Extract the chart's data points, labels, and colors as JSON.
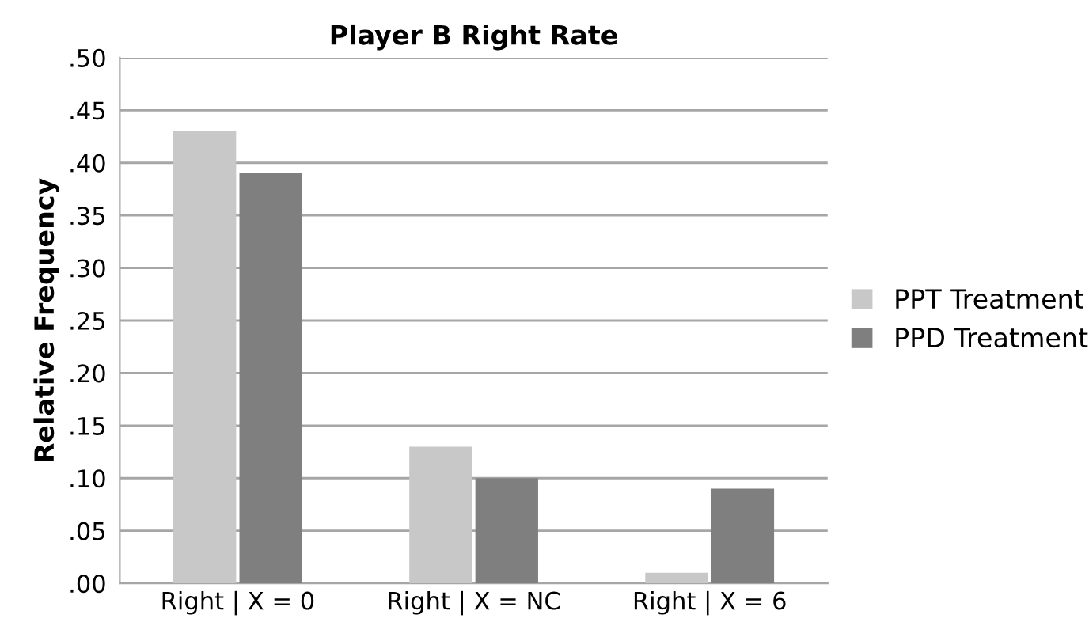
{
  "chart_data": {
    "type": "bar",
    "title": "Player B Right Rate",
    "ylabel": "Relative Frequency",
    "categories": [
      "Right | X = 0",
      "Right | X = NC",
      "Right | X = 6"
    ],
    "series": [
      {
        "name": "PPT Treatment",
        "color": "#c8c8c8",
        "values": [
          0.43,
          0.13,
          0.01
        ]
      },
      {
        "name": "PPD Treatment",
        "color": "#7f7f7f",
        "values": [
          0.39,
          0.1,
          0.09
        ]
      }
    ],
    "ylim": [
      0,
      0.5
    ],
    "yticks": [
      {
        "value": 0,
        "label": ".00"
      },
      {
        "value": 0.05,
        "label": ".05"
      },
      {
        "value": 0.1,
        "label": ".10"
      },
      {
        "value": 0.15,
        "label": ".15"
      },
      {
        "value": 0.2,
        "label": ".20"
      },
      {
        "value": 0.25,
        "label": ".25"
      },
      {
        "value": 0.3,
        "label": ".30"
      },
      {
        "value": 0.35,
        "label": ".35"
      },
      {
        "value": 0.4,
        "label": ".40"
      },
      {
        "value": 0.45,
        "label": ".45"
      },
      {
        "value": 0.5,
        "label": ".50"
      }
    ],
    "grid": "y",
    "legend": "right"
  }
}
